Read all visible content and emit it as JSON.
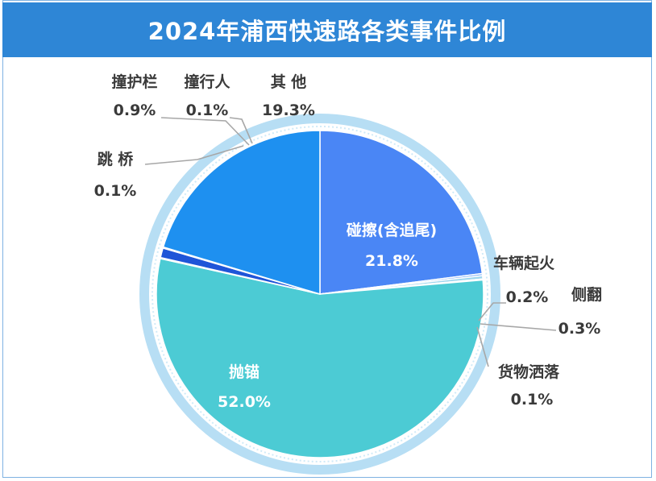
{
  "title": "2024年浦西快速路各类事件比例",
  "colors": {
    "title_bar": "#2e86d6",
    "ring_outer": "#b7def4",
    "ring_inner": "#d9eefa"
  },
  "chart_data": {
    "type": "pie",
    "title": "2024年浦西快速路各类事件比例",
    "slices": [
      {
        "name": "碰擦(含追尾)",
        "value": 21.8,
        "label": "21.8%",
        "color": "#4a86f5"
      },
      {
        "name": "车辆起火",
        "value": 0.2,
        "label": "0.2%",
        "color": "#7fb0f7"
      },
      {
        "name": "侧翻",
        "value": 0.3,
        "label": "0.3%",
        "color": "#9fd6ee"
      },
      {
        "name": "货物洒落",
        "value": 0.1,
        "label": "0.1%",
        "color": "#3aa6d8"
      },
      {
        "name": "抛锚",
        "value": 52.0,
        "label": "52.0%",
        "color": "#4ccbd4"
      },
      {
        "name": "跳 桥",
        "value": 0.1,
        "label": "0.1%",
        "color": "#2f7ee0"
      },
      {
        "name": "撞护栏",
        "value": 0.9,
        "label": "0.9%",
        "color": "#1f55d8"
      },
      {
        "name": "撞行人",
        "value": 0.1,
        "label": "0.1%",
        "color": "#2a8cde"
      },
      {
        "name": "其 他",
        "value": 19.3,
        "label": "19.3%",
        "color": "#1e90f0"
      }
    ],
    "legend": "none"
  }
}
